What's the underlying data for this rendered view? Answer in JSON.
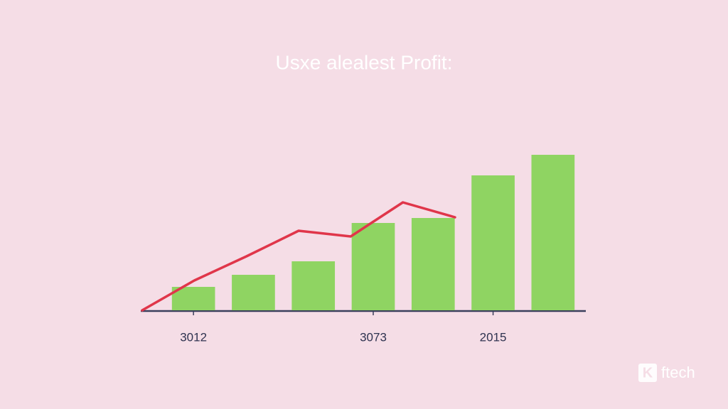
{
  "chart_data": {
    "type": "bar",
    "title": "Usxe alealest Profit:",
    "categories": [
      "3012",
      null,
      null,
      "3073",
      null,
      "2015",
      null
    ],
    "series": [
      {
        "type": "bar",
        "color": "#8fd462",
        "values": [
          33,
          50,
          69,
          123,
          130,
          190,
          219
        ]
      },
      {
        "type": "line",
        "color": "#e0364a",
        "values": [
          0,
          42,
          76,
          112,
          104,
          152,
          131
        ]
      }
    ],
    "ylim": [
      0,
      250
    ],
    "watermark": {
      "logo": "K",
      "text": "ftech"
    }
  }
}
